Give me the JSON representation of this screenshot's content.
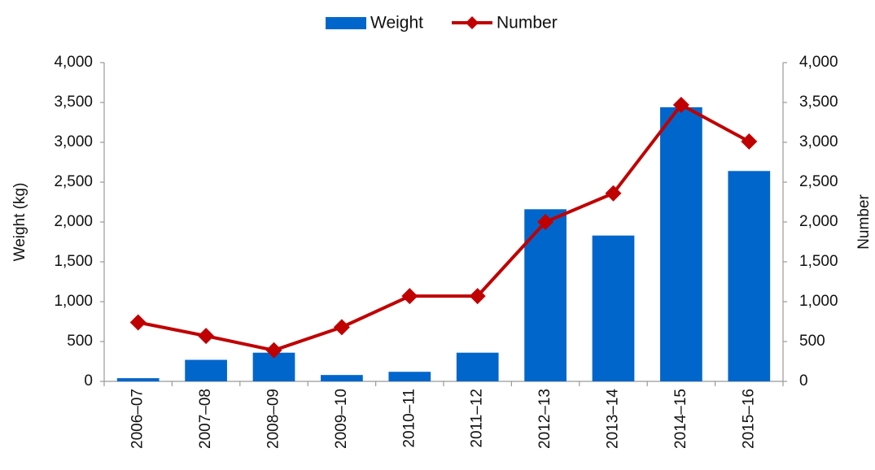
{
  "chart_data": {
    "type": "bar-line",
    "categories": [
      "2006–07",
      "2007–08",
      "2008–09",
      "2009–10",
      "2010–11",
      "2011–12",
      "2012–13",
      "2013–14",
      "2014–15",
      "2015–16"
    ],
    "series": [
      {
        "name": "Weight",
        "type": "bar",
        "color": "#0066cc",
        "values": [
          40,
          270,
          360,
          80,
          120,
          360,
          2160,
          1830,
          3440,
          2640
        ]
      },
      {
        "name": "Number",
        "type": "line",
        "axis": "y2",
        "color": "#c00000",
        "values": [
          740,
          570,
          390,
          680,
          1070,
          1070,
          2000,
          2360,
          3470,
          3010
        ]
      }
    ],
    "ylabel": "Weight (kg)",
    "y2label": "Number",
    "ylim": [
      0,
      4000
    ],
    "yticks": [
      0,
      500,
      {
        "value": 1000,
        "label": "1,000"
      },
      {
        "value": 1500,
        "label": "1,500"
      },
      {
        "value": 2000,
        "label": "2,000"
      },
      {
        "value": 2500,
        "label": "2,500"
      },
      {
        "value": 3000,
        "label": "3,000"
      },
      {
        "value": 3500,
        "label": "3,500"
      },
      {
        "value": 4000,
        "label": "4,000"
      }
    ],
    "y2lim": [
      0,
      4000
    ],
    "y2ticks": [
      0,
      500,
      {
        "value": 1000,
        "label": "1,000"
      },
      {
        "value": 1500,
        "label": "1,500"
      },
      {
        "value": 2000,
        "label": "2,000"
      },
      {
        "value": 2500,
        "label": "2,500"
      },
      {
        "value": 3000,
        "label": "3,000"
      },
      {
        "value": 3500,
        "label": "3,500"
      },
      {
        "value": 4000,
        "label": "4,000"
      }
    ],
    "grid": false,
    "legend": "top"
  }
}
